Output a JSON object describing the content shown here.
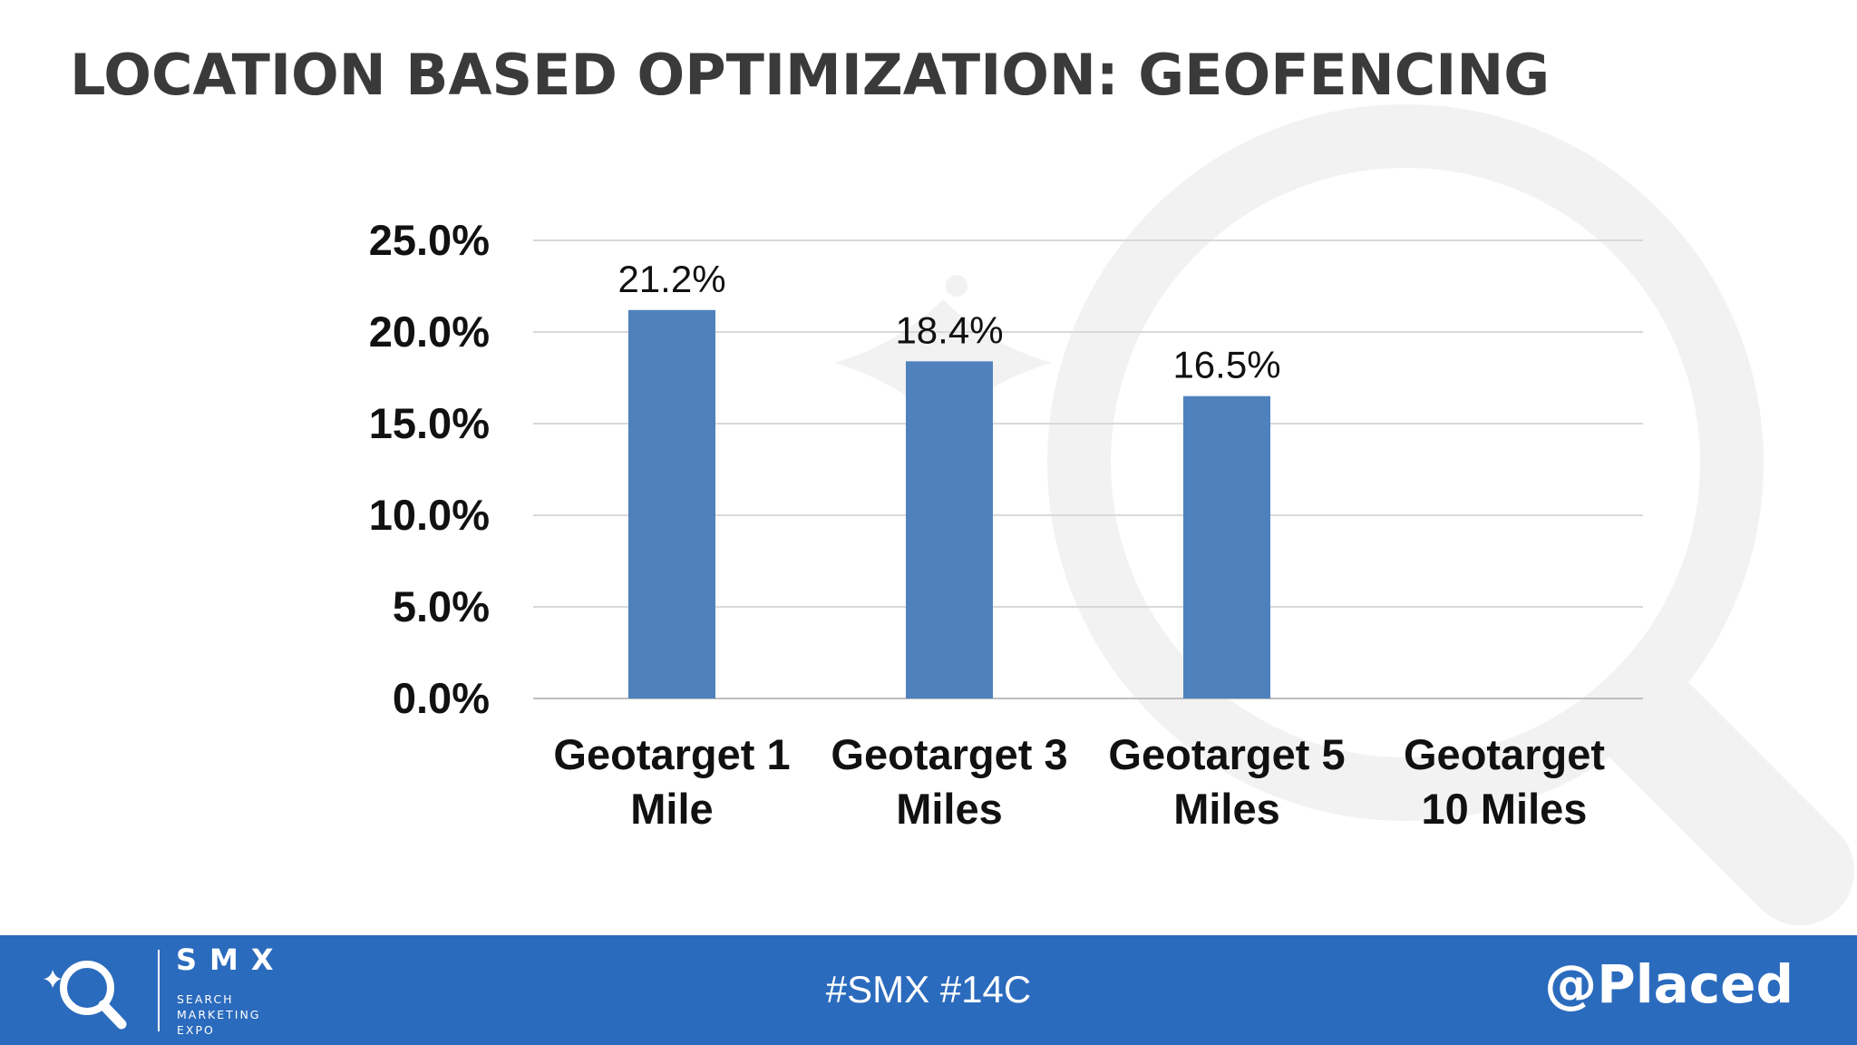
{
  "slide": {
    "title": "LOCATION BASED OPTIMIZATION: GEOFENCING"
  },
  "chart_data": {
    "type": "bar",
    "title": "",
    "xlabel": "",
    "ylabel": "",
    "categories": [
      [
        "Geotarget 1",
        "Mile"
      ],
      [
        "Geotarget 3",
        "Miles"
      ],
      [
        "Geotarget 5",
        "Miles"
      ],
      [
        "Geotarget",
        "10 Miles"
      ]
    ],
    "values": [
      21.2,
      18.4,
      16.5,
      null
    ],
    "data_labels": [
      "21.2%",
      "18.4%",
      "16.5%",
      ""
    ],
    "y_ticks": [
      "0.0%",
      "5.0%",
      "10.0%",
      "15.0%",
      "20.0%",
      "25.0%"
    ],
    "ylim": [
      0,
      25
    ],
    "grid": true,
    "legend": "none",
    "bar_color": "#4f81bd"
  },
  "footer": {
    "brand": "SMX",
    "brand_lines": [
      "SEARCH",
      "MARKETING",
      "EXPO"
    ],
    "hashtags": "#SMX #14C",
    "handle": "@Placed",
    "background_color": "#2b6bbd",
    "logo_icon": "magnifier-sparkle-icon"
  },
  "watermark_icon": "magnifier-watermark-icon"
}
